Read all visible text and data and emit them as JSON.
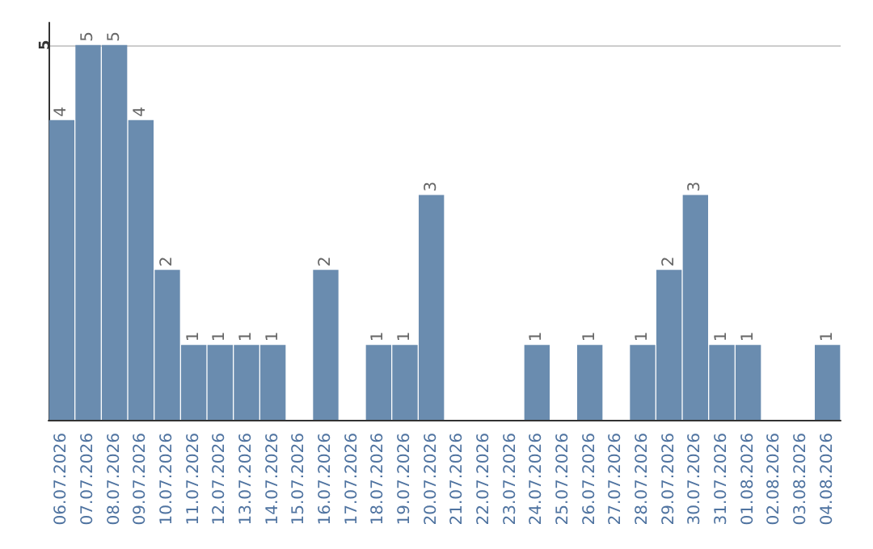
{
  "chart_data": {
    "type": "bar",
    "categories": [
      "06.07.2026",
      "07.07.2026",
      "08.07.2026",
      "09.07.2026",
      "10.07.2026",
      "11.07.2026",
      "12.07.2026",
      "13.07.2026",
      "14.07.2026",
      "15.07.2026",
      "16.07.2026",
      "17.07.2026",
      "18.07.2026",
      "19.07.2026",
      "20.07.2026",
      "21.07.2026",
      "22.07.2026",
      "23.07.2026",
      "24.07.2026",
      "25.07.2026",
      "26.07.2026",
      "27.07.2026",
      "28.07.2026",
      "29.07.2026",
      "30.07.2026",
      "31.07.2026",
      "01.08.2026",
      "02.08.2026",
      "03.08.2026",
      "04.08.2026"
    ],
    "values": [
      4,
      5,
      5,
      4,
      2,
      1,
      1,
      1,
      1,
      0,
      2,
      0,
      1,
      1,
      3,
      0,
      0,
      0,
      1,
      0,
      1,
      0,
      1,
      2,
      3,
      1,
      1,
      0,
      0,
      1
    ],
    "value_labels": [
      "4",
      "5",
      "5",
      "4",
      "2",
      "1",
      "1",
      "1",
      "1",
      null,
      "2",
      null,
      "1",
      "1",
      "3",
      null,
      null,
      null,
      "1",
      null,
      "1",
      null,
      "1",
      "2",
      "3",
      "1",
      "1",
      null,
      null,
      "1"
    ],
    "color": "#6a8caf",
    "ylim": [
      0,
      5.3
    ],
    "yticks": [
      {
        "value": 0,
        "label": null
      },
      5
    ],
    "grid": "y"
  }
}
